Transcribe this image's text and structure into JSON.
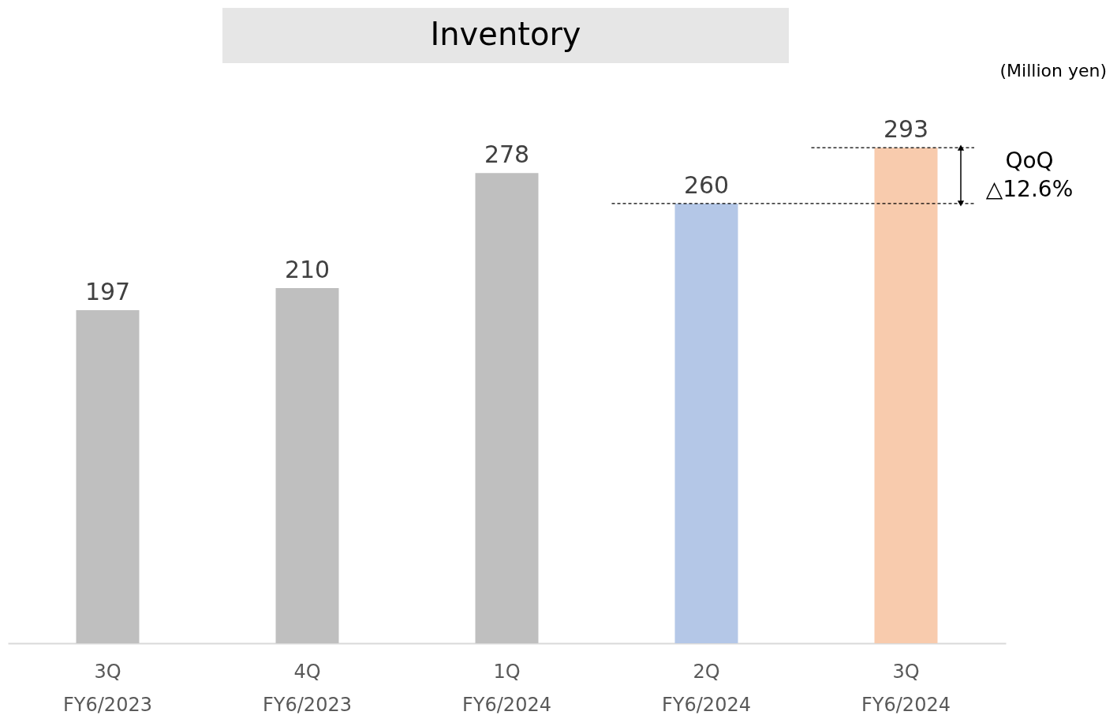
{
  "chart_data": {
    "type": "bar",
    "title": "Inventory",
    "categories": [
      "3Q\nFY6/2023",
      "4Q\nFY6/2023",
      "1Q\nFY6/2024",
      "2Q\nFY6/2024",
      "3Q\nFY6/2024"
    ],
    "values": [
      197,
      210,
      278,
      260,
      293
    ],
    "colors": [
      "#bfbfbf",
      "#bfbfbf",
      "#bfbfbf",
      "#b4c7e7",
      "#f8cbad"
    ],
    "data_labels": true,
    "ref_lines": [
      {
        "axis": "y",
        "value": 260,
        "label": null,
        "line_style": "dashed",
        "color": "#000000"
      },
      {
        "axis": "y",
        "value": 293,
        "label": null,
        "line_style": "dashed",
        "color": "#000000"
      }
    ],
    "annotations": [
      "(Million yen)",
      "QoQ\n△12.6%"
    ]
  }
}
